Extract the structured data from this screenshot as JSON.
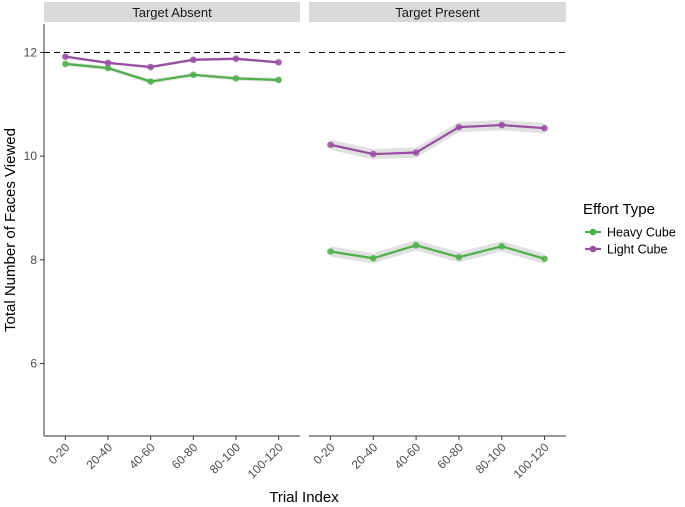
{
  "chart_data": {
    "type": "line",
    "ylabel": "Total Number of Faces Viewed",
    "xlabel": "Trial Index",
    "ylim": [
      4.6,
      12.55
    ],
    "yticks": [
      6,
      8,
      10,
      12
    ],
    "reference_line": {
      "y": 12,
      "style": "dashed",
      "color": "#000000"
    },
    "categories": [
      "0-20",
      "20-40",
      "40-60",
      "60-80",
      "80-100",
      "100-120"
    ],
    "legend": {
      "title": "Effort Type",
      "position": "right",
      "items": [
        {
          "label": "Heavy Cube",
          "color": "#4daf4a"
        },
        {
          "label": "Light Cube",
          "color": "#984ea3"
        }
      ]
    },
    "panels": [
      {
        "title": "Target Absent",
        "series": [
          {
            "name": "Heavy Cube",
            "color": "#4daf4a",
            "values": [
              11.78,
              11.7,
              11.44,
              11.57,
              11.5,
              11.47
            ],
            "band": 0.04
          },
          {
            "name": "Light Cube",
            "color": "#984ea3",
            "values": [
              11.92,
              11.8,
              11.72,
              11.86,
              11.88,
              11.81
            ],
            "band": 0.03
          }
        ]
      },
      {
        "title": "Target Present",
        "series": [
          {
            "name": "Heavy Cube",
            "color": "#4daf4a",
            "values": [
              8.16,
              8.03,
              8.28,
              8.05,
              8.26,
              8.02
            ],
            "band": 0.1
          },
          {
            "name": "Light Cube",
            "color": "#984ea3",
            "values": [
              10.22,
              10.04,
              10.07,
              10.56,
              10.6,
              10.54
            ],
            "band": 0.1
          }
        ]
      }
    ]
  }
}
